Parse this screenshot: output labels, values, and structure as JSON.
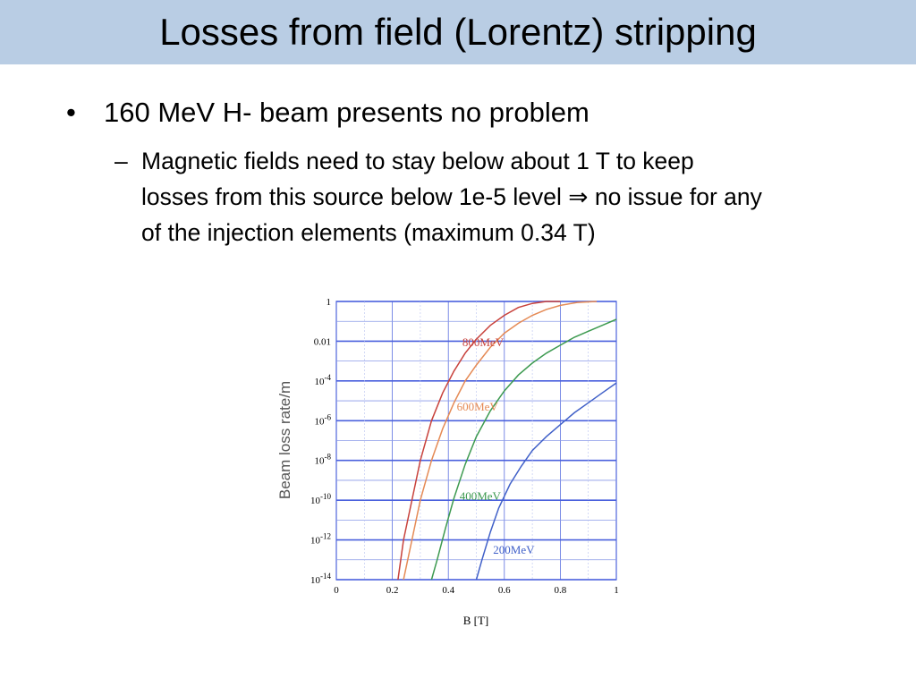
{
  "slide": {
    "title": "Losses from field (Lorentz) stripping",
    "bullet": "160 MeV H- beam presents no problem",
    "sub_dash": "–",
    "sub_lines": [
      "Magnetic fields need to stay below about 1 T to keep",
      "losses from this source below 1e-5 level",
      "no issue for any",
      "of the injection elements (maximum 0.34 T)"
    ],
    "implies_symbol": "⇒"
  },
  "chart_data": {
    "type": "line",
    "xlabel": "B [T]",
    "ylabel": "Beam loss rate/m",
    "xlim": [
      0,
      1
    ],
    "ylim_log10": [
      -14,
      0
    ],
    "y_scale": "log",
    "grid": true,
    "x_ticks": [
      "0",
      "0.2",
      "0.4",
      "0.6",
      "0.8",
      "1"
    ],
    "y_ticks": [
      {
        "base": "1",
        "exp": "",
        "log10": 0
      },
      {
        "base": "0.01",
        "exp": "",
        "log10": -2
      },
      {
        "base": "10",
        "exp": "-4",
        "log10": -4
      },
      {
        "base": "10",
        "exp": "-6",
        "log10": -6
      },
      {
        "base": "10",
        "exp": "-8",
        "log10": -8
      },
      {
        "base": "10",
        "exp": "-10",
        "log10": -10
      },
      {
        "base": "10",
        "exp": "-12",
        "log10": -12
      },
      {
        "base": "10",
        "exp": "-14",
        "log10": -14
      }
    ],
    "series": [
      {
        "name": "800MeV",
        "color": "#c8423c",
        "x": [
          0.22,
          0.24,
          0.27,
          0.3,
          0.34,
          0.38,
          0.42,
          0.46,
          0.5,
          0.55,
          0.6,
          0.65,
          0.7,
          0.75,
          0.8
        ],
        "log10y": [
          -14,
          -12,
          -10,
          -8,
          -6,
          -4.6,
          -3.5,
          -2.6,
          -1.9,
          -1.2,
          -0.7,
          -0.3,
          -0.1,
          0,
          0
        ]
      },
      {
        "name": "600MeV",
        "color": "#e58a55",
        "x": [
          0.24,
          0.27,
          0.3,
          0.34,
          0.38,
          0.42,
          0.46,
          0.5,
          0.55,
          0.6,
          0.65,
          0.7,
          0.75,
          0.8,
          0.86,
          0.93
        ],
        "log10y": [
          -14,
          -12,
          -10,
          -8,
          -6.4,
          -5.1,
          -4.0,
          -3.2,
          -2.3,
          -1.6,
          -1.1,
          -0.7,
          -0.4,
          -0.2,
          -0.05,
          0
        ]
      },
      {
        "name": "400MeV",
        "color": "#3d9a50",
        "x": [
          0.34,
          0.36,
          0.39,
          0.42,
          0.46,
          0.5,
          0.55,
          0.6,
          0.65,
          0.7,
          0.75,
          0.8,
          0.85,
          0.9,
          0.95,
          1.0
        ],
        "log10y": [
          -14,
          -13,
          -11.4,
          -9.9,
          -8.2,
          -6.8,
          -5.5,
          -4.5,
          -3.7,
          -3.1,
          -2.6,
          -2.2,
          -1.8,
          -1.5,
          -1.2,
          -0.9
        ]
      },
      {
        "name": "200MeV",
        "color": "#4060c8",
        "x": [
          0.5,
          0.52,
          0.55,
          0.58,
          0.62,
          0.66,
          0.7,
          0.75,
          0.8,
          0.85,
          0.9,
          0.95,
          1.0
        ],
        "log10y": [
          -14,
          -13,
          -11.6,
          -10.4,
          -9.2,
          -8.3,
          -7.5,
          -6.8,
          -6.2,
          -5.6,
          -5.1,
          -4.6,
          -4.1
        ]
      }
    ],
    "series_labels": [
      {
        "name": "800MeV",
        "x": 0.45,
        "log10y": -2.25,
        "color": "#c8423c"
      },
      {
        "name": "600MeV",
        "x": 0.43,
        "log10y": -5.5,
        "color": "#e58a55"
      },
      {
        "name": "400MeV",
        "x": 0.44,
        "log10y": -10.0,
        "color": "#3d9a50"
      },
      {
        "name": "200MeV",
        "x": 0.56,
        "log10y": -12.7,
        "color": "#4060c8"
      }
    ]
  }
}
